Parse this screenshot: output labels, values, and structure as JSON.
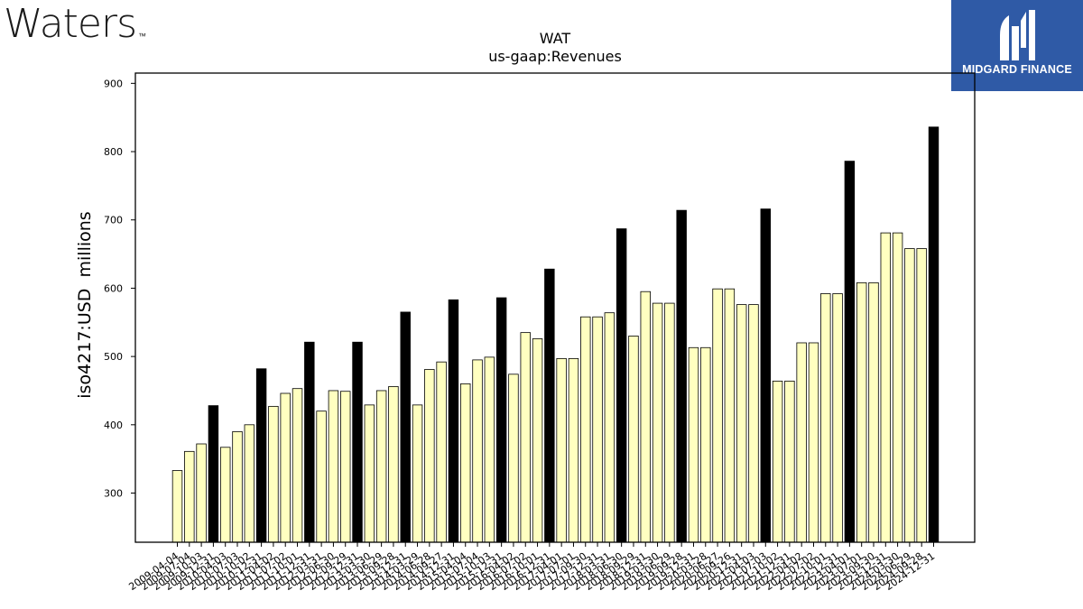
{
  "branding": {
    "left_logo": "Waters",
    "left_logo_tm": "™",
    "right_logo": "MIDGARD FINANCE",
    "right_logo_bg": "#2f5aa6"
  },
  "chart_data": {
    "type": "bar",
    "title": "WAT",
    "subtitle": "us-gaap:Revenues",
    "ylabel": "iso4217:USD  millions",
    "xlabel": "",
    "ylim": [
      228,
      915
    ],
    "yticks": [
      300,
      400,
      500,
      600,
      700,
      800,
      900
    ],
    "grid": false,
    "colors": {
      "quarter": "#ffffc0",
      "annual": "#000000",
      "edge": "#000000"
    },
    "categories": [
      "2009-04-04",
      "2009-07-04",
      "2009-10-03",
      "2009-12-31",
      "2010-04-03",
      "2010-07-03",
      "2010-10-02",
      "2010-12-31",
      "2011-04-02",
      "2011-07-02",
      "2011-10-01",
      "2011-12-31",
      "2012-03-31",
      "2012-06-30",
      "2012-09-29",
      "2012-12-31",
      "2013-03-30",
      "2013-06-29",
      "2013-09-28",
      "2013-12-31",
      "2014-03-29",
      "2014-06-28",
      "2014-09-27",
      "2014-12-31",
      "2015-04-04",
      "2015-07-04",
      "2015-10-03",
      "2015-12-31",
      "2016-04-02",
      "2016-07-02",
      "2016-10-01",
      "2016-12-31",
      "2017-04-01",
      "2017-07-01",
      "2017-09-30",
      "2017-12-31",
      "2018-03-31",
      "2018-06-30",
      "2018-09-29",
      "2018-12-31",
      "2019-03-30",
      "2019-06-29",
      "2019-09-28",
      "2019-12-31",
      "2020-03-28",
      "2020-06-27",
      "2020-09-26",
      "2020-12-31",
      "2021-04-03",
      "2021-07-03",
      "2021-10-02",
      "2021-12-31",
      "2022-04-02",
      "2022-07-02",
      "2022-10-01",
      "2022-12-31",
      "2023-04-01",
      "2023-07-01",
      "2023-09-30",
      "2023-12-31",
      "2024-03-30",
      "2024-06-29",
      "2024-09-28",
      "2024-12-31"
    ],
    "values": [
      333,
      361,
      372,
      428,
      367,
      390,
      400,
      482,
      427,
      446,
      453,
      521,
      420,
      450,
      449,
      521,
      429,
      450,
      456,
      565,
      429,
      481,
      492,
      583,
      460,
      495,
      499,
      586,
      474,
      535,
      526,
      628,
      497,
      497,
      558,
      558,
      564,
      687,
      530,
      595,
      578,
      578,
      714,
      513,
      513,
      599,
      599,
      576,
      576,
      716,
      464,
      464,
      520,
      520,
      592,
      592,
      786,
      608,
      608,
      681,
      681,
      658,
      658,
      836
    ],
    "annual": [
      false,
      false,
      false,
      true,
      false,
      false,
      false,
      true,
      false,
      false,
      false,
      true,
      false,
      false,
      false,
      true,
      false,
      false,
      false,
      true,
      false,
      false,
      false,
      true,
      false,
      false,
      false,
      true,
      false,
      false,
      false,
      true,
      false,
      false,
      false,
      false,
      false,
      true,
      false,
      false,
      false,
      false,
      true,
      false,
      false,
      false,
      false,
      false,
      false,
      true,
      false,
      false,
      false,
      false,
      false,
      false,
      true,
      false,
      false,
      false,
      false,
      false,
      false,
      true
    ]
  }
}
